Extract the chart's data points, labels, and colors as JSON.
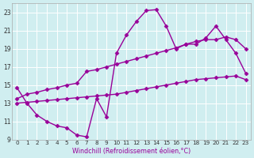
{
  "line1_x": [
    0,
    1,
    2,
    3,
    4,
    5,
    6,
    7,
    8,
    9,
    10,
    11,
    12,
    13,
    14,
    15,
    16,
    17,
    18,
    19,
    20,
    21,
    22,
    23
  ],
  "line1_y": [
    14.7,
    13.0,
    11.7,
    11.0,
    10.5,
    10.3,
    9.5,
    9.3,
    13.5,
    11.5,
    18.5,
    20.5,
    22.0,
    23.2,
    23.3,
    21.5,
    19.0,
    19.5,
    19.5,
    20.2,
    21.5,
    20.0,
    18.5,
    16.3
  ],
  "line2_x": [
    0,
    1,
    2,
    3,
    4,
    5,
    6,
    7,
    8,
    9,
    10,
    11,
    12,
    13,
    14,
    15,
    16,
    17,
    18,
    19,
    20,
    21,
    22,
    23
  ],
  "line2_y": [
    13.5,
    14.0,
    14.2,
    14.5,
    14.7,
    15.0,
    15.2,
    16.5,
    16.7,
    17.0,
    17.3,
    17.6,
    17.9,
    18.2,
    18.5,
    18.8,
    19.1,
    19.5,
    19.8,
    20.0,
    20.0,
    20.3,
    20.0,
    19.0
  ],
  "line3_x": [
    0,
    1,
    2,
    3,
    4,
    5,
    6,
    7,
    8,
    9,
    10,
    11,
    12,
    13,
    14,
    15,
    16,
    17,
    18,
    19,
    20,
    21,
    22,
    23
  ],
  "line3_y": [
    13.0,
    13.1,
    13.2,
    13.3,
    13.4,
    13.5,
    13.6,
    13.7,
    13.8,
    13.9,
    14.0,
    14.2,
    14.4,
    14.6,
    14.8,
    15.0,
    15.2,
    15.4,
    15.6,
    15.7,
    15.8,
    15.9,
    16.0,
    15.6
  ],
  "color": "#990099",
  "bg_color": "#d0eef0",
  "grid_color": "#ffffff",
  "xlabel": "Windchill (Refroidissement éolien,°C)",
  "xlim": [
    -0.5,
    23.5
  ],
  "ylim": [
    9,
    24
  ],
  "xticks": [
    0,
    1,
    2,
    3,
    4,
    5,
    6,
    7,
    8,
    9,
    10,
    11,
    12,
    13,
    14,
    15,
    16,
    17,
    18,
    19,
    20,
    21,
    22,
    23
  ],
  "yticks": [
    9,
    11,
    13,
    15,
    17,
    19,
    21,
    23
  ],
  "marker": "D",
  "markersize": 2.5,
  "linewidth": 1.0
}
